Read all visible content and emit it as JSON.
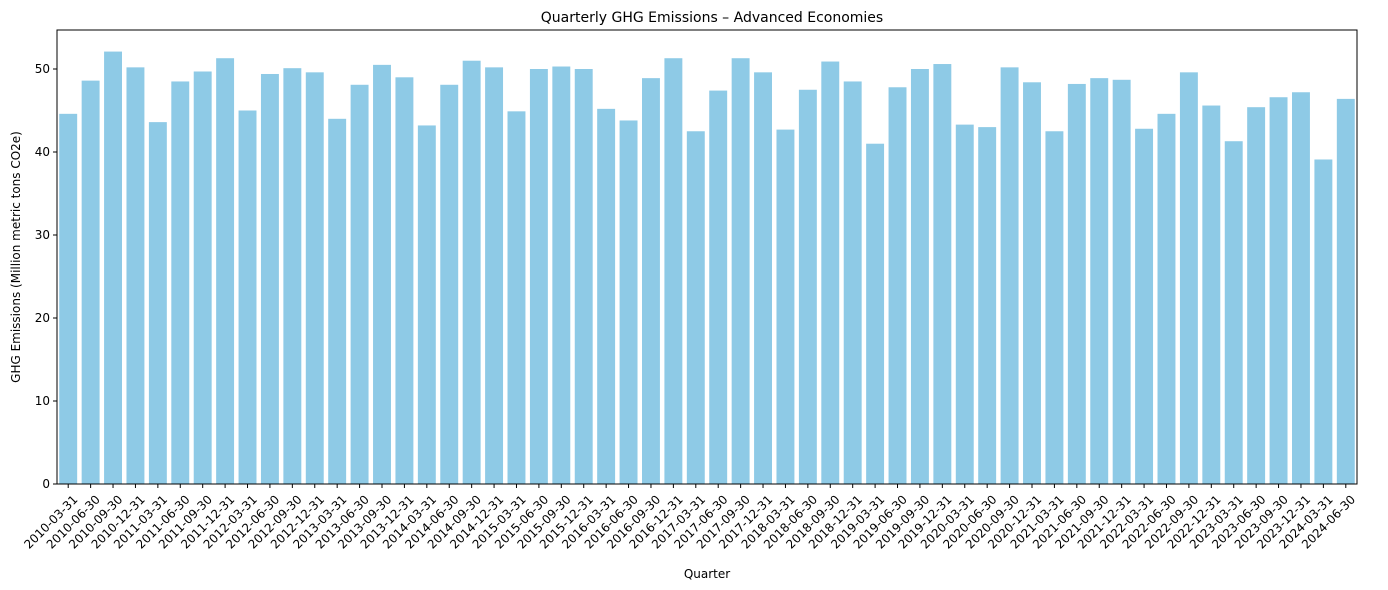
{
  "chart_data": {
    "type": "bar",
    "title": "Quarterly GHG Emissions – Advanced Economies",
    "xlabel": "Quarter",
    "ylabel": "GHG Emissions (Million metric tons CO2e)",
    "ylim": [
      0,
      54.7
    ],
    "yticks": [
      0,
      10,
      20,
      30,
      40,
      50
    ],
    "bar_color": "#8ecae6",
    "grid": false,
    "categories": [
      "2010-03-31",
      "2010-06-30",
      "2010-09-30",
      "2010-12-31",
      "2011-03-31",
      "2011-06-30",
      "2011-09-30",
      "2011-12-31",
      "2012-03-31",
      "2012-06-30",
      "2012-09-30",
      "2012-12-31",
      "2013-03-31",
      "2013-06-30",
      "2013-09-30",
      "2013-12-31",
      "2014-03-31",
      "2014-06-30",
      "2014-09-30",
      "2014-12-31",
      "2015-03-31",
      "2015-06-30",
      "2015-09-30",
      "2015-12-31",
      "2016-03-31",
      "2016-06-30",
      "2016-09-30",
      "2016-12-31",
      "2017-03-31",
      "2017-06-30",
      "2017-09-30",
      "2017-12-31",
      "2018-03-31",
      "2018-06-30",
      "2018-09-30",
      "2018-12-31",
      "2019-03-31",
      "2019-06-30",
      "2019-09-30",
      "2019-12-31",
      "2020-03-31",
      "2020-06-30",
      "2020-09-30",
      "2020-12-31",
      "2021-03-31",
      "2021-06-30",
      "2021-09-30",
      "2021-12-31",
      "2022-03-31",
      "2022-06-30",
      "2022-09-30",
      "2022-12-31",
      "2023-03-31",
      "2023-06-30",
      "2023-09-30",
      "2023-12-31",
      "2024-03-31",
      "2024-06-30"
    ],
    "values": [
      44.6,
      48.6,
      52.1,
      50.2,
      43.6,
      48.5,
      49.7,
      51.3,
      45.0,
      49.4,
      50.1,
      49.6,
      44.0,
      48.1,
      50.5,
      49.0,
      43.2,
      48.1,
      51.0,
      50.2,
      44.9,
      50.0,
      50.3,
      50.0,
      45.2,
      43.8,
      48.9,
      51.3,
      42.5,
      47.4,
      51.3,
      49.6,
      42.7,
      47.5,
      50.9,
      48.5,
      41.0,
      47.8,
      50.0,
      50.6,
      43.3,
      43.0,
      50.2,
      48.4,
      42.5,
      48.2,
      48.9,
      48.7,
      42.8,
      44.6,
      49.6,
      45.6,
      41.3,
      45.4,
      46.6,
      47.2,
      39.1,
      46.4
    ]
  }
}
